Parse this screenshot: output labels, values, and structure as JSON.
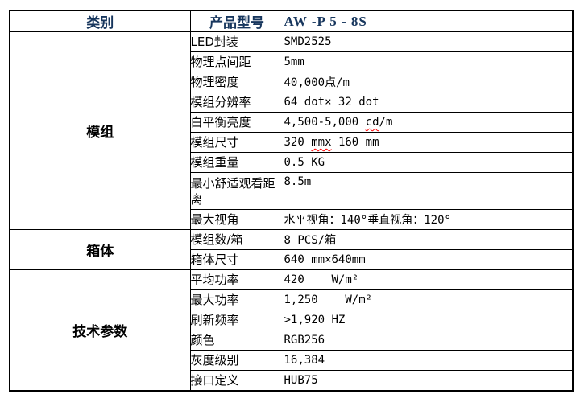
{
  "table": {
    "header": {
      "col1": "类别",
      "col2": "产品型号",
      "col3": "AW -P 5 - 8S"
    },
    "sections": [
      {
        "category": "模组",
        "rows": [
          {
            "label": "LED封装",
            "value": "SMD2525"
          },
          {
            "label": "物理点间距",
            "value": "5mm"
          },
          {
            "label": "物理密度",
            "value": "40,000点/m"
          },
          {
            "label": "模组分辨率",
            "value": "64 dot× 32 dot"
          },
          {
            "label": "白平衡亮度",
            "value": "4,500-5,000 cd/m",
            "value_parts": [
              "4,500-5,000 ",
              "cd",
              "/m"
            ]
          },
          {
            "label": "模组尺寸",
            "value": "320 mmx 160 mm",
            "value_parts": [
              "320 ",
              "mmx",
              " 160 mm"
            ]
          },
          {
            "label": "模组重量",
            "value": "0.5 KG"
          },
          {
            "label": "最小舒适观看距离",
            "value": "8.5m",
            "tall": true
          },
          {
            "label": "最大视角",
            "value": "水平视角：140°垂直视角：120°"
          }
        ]
      },
      {
        "category": "箱体",
        "rows": [
          {
            "label": "模组数/箱",
            "value": "8 PCS/箱"
          },
          {
            "label": "箱体尺寸",
            "value": "640 mm×640mm"
          }
        ]
      },
      {
        "category": "技术参数",
        "rows": [
          {
            "label": "平均功率",
            "value": "420    W/m²"
          },
          {
            "label": "最大功率",
            "value": "1,250    W/m²"
          },
          {
            "label": "刷新频率",
            "value": ">1,920 HZ"
          },
          {
            "label": "颜色",
            "value": "RGB256"
          },
          {
            "label": "灰度级别",
            "value": "16,384"
          },
          {
            "label": "接口定义",
            "value": "HUB75"
          }
        ]
      }
    ],
    "colors": {
      "header_text": "#17365D",
      "border": "#000000",
      "squiggle": "#FF0000",
      "background": "#FFFFFF"
    }
  }
}
